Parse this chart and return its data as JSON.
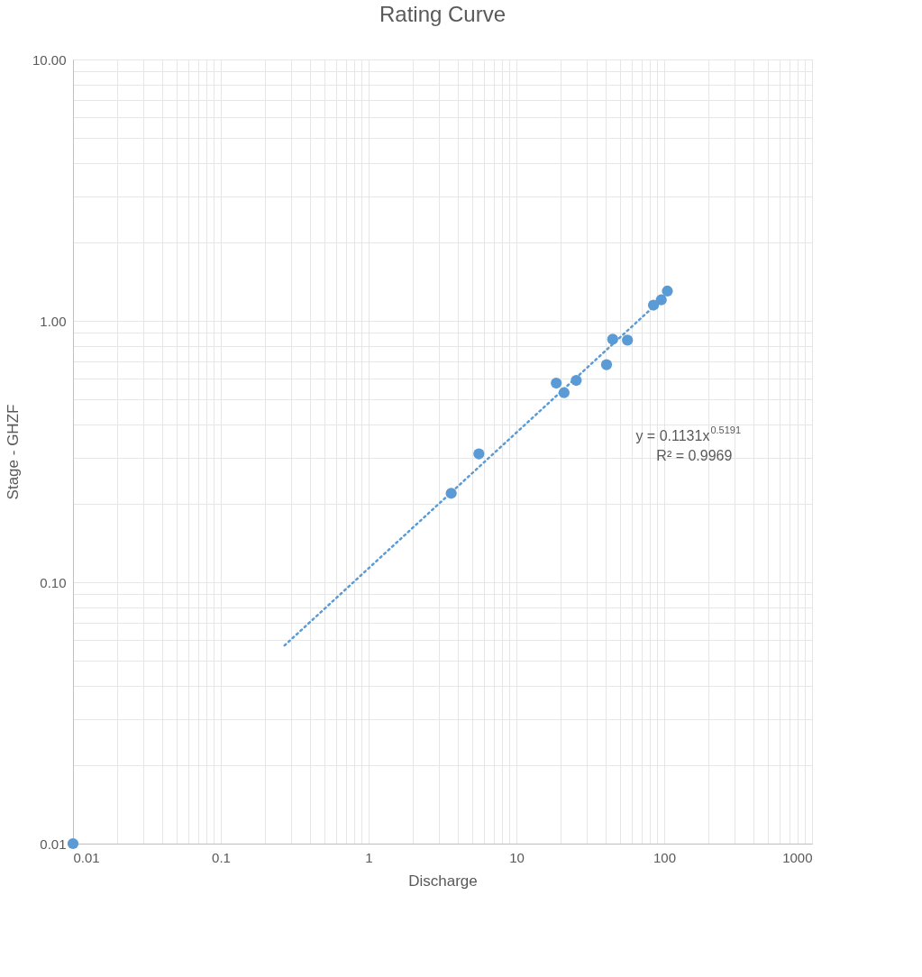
{
  "chart_data": {
    "type": "scatter",
    "title": "Rating Curve",
    "xlabel": "Discharge",
    "ylabel": "Stage - GHZF",
    "log": "xy",
    "grid": true,
    "marker": "circle",
    "xlim": [
      0.01,
      1000
    ],
    "ylim": [
      0.01,
      10
    ],
    "xticks": [
      0.01,
      {
        "value": 0.02,
        "label": null
      },
      {
        "value": 0.03,
        "label": null
      },
      {
        "value": 0.04,
        "label": null
      },
      {
        "value": 0.05,
        "label": null
      },
      {
        "value": 0.06,
        "label": null
      },
      {
        "value": 0.07,
        "label": null
      },
      {
        "value": 0.08,
        "label": null
      },
      {
        "value": 0.09,
        "label": null
      },
      0.1,
      {
        "value": 0.2,
        "label": null
      },
      {
        "value": 0.3,
        "label": null
      },
      {
        "value": 0.4,
        "label": null
      },
      {
        "value": 0.5,
        "label": null
      },
      {
        "value": 0.6,
        "label": null
      },
      {
        "value": 0.7,
        "label": null
      },
      {
        "value": 0.8,
        "label": null
      },
      {
        "value": 0.9,
        "label": null
      },
      1,
      {
        "value": 2,
        "label": null
      },
      {
        "value": 3,
        "label": null
      },
      {
        "value": 4,
        "label": null
      },
      {
        "value": 5,
        "label": null
      },
      {
        "value": 6,
        "label": null
      },
      {
        "value": 7,
        "label": null
      },
      {
        "value": 8,
        "label": null
      },
      {
        "value": 9,
        "label": null
      },
      10,
      {
        "value": 20,
        "label": null
      },
      {
        "value": 30,
        "label": null
      },
      {
        "value": 40,
        "label": null
      },
      {
        "value": 50,
        "label": null
      },
      {
        "value": 60,
        "label": null
      },
      {
        "value": 70,
        "label": null
      },
      {
        "value": 80,
        "label": null
      },
      {
        "value": 90,
        "label": null
      },
      100,
      {
        "value": 200,
        "label": null
      },
      {
        "value": 300,
        "label": null
      },
      {
        "value": 400,
        "label": null
      },
      {
        "value": 500,
        "label": null
      },
      {
        "value": 600,
        "label": null
      },
      {
        "value": 700,
        "label": null
      },
      {
        "value": 800,
        "label": null
      },
      {
        "value": 900,
        "label": null
      },
      1000
    ],
    "yticks": [
      {
        "value": 0.01,
        "label": "0.01"
      },
      {
        "value": 0.02,
        "label": null
      },
      {
        "value": 0.03,
        "label": null
      },
      {
        "value": 0.04,
        "label": null
      },
      {
        "value": 0.05,
        "label": null
      },
      {
        "value": 0.06,
        "label": null
      },
      {
        "value": 0.07,
        "label": null
      },
      {
        "value": 0.08,
        "label": null
      },
      {
        "value": 0.09,
        "label": null
      },
      {
        "value": 0.1,
        "label": "0.10"
      },
      {
        "value": 0.2,
        "label": null
      },
      {
        "value": 0.3,
        "label": null
      },
      {
        "value": 0.4,
        "label": null
      },
      {
        "value": 0.5,
        "label": null
      },
      {
        "value": 0.6,
        "label": null
      },
      {
        "value": 0.7,
        "label": null
      },
      {
        "value": 0.8,
        "label": null
      },
      {
        "value": 0.9,
        "label": null
      },
      {
        "value": 1,
        "label": "1.00"
      },
      {
        "value": 2,
        "label": null
      },
      {
        "value": 3,
        "label": null
      },
      {
        "value": 4,
        "label": null
      },
      {
        "value": 5,
        "label": null
      },
      {
        "value": 6,
        "label": null
      },
      {
        "value": 7,
        "label": null
      },
      {
        "value": 8,
        "label": null
      },
      {
        "value": 9,
        "label": null
      },
      {
        "value": 10,
        "label": "10.00"
      }
    ],
    "series": [
      {
        "type": "scatter",
        "color": "#5b9bd5",
        "x": [
          0.01,
          3.62,
          5.57,
          18.6,
          21.0,
          25.4,
          40.7,
          44.8,
          56.4,
          84.6,
          95.5,
          105
        ],
        "values": [
          0.01,
          0.219,
          0.31,
          0.578,
          0.531,
          0.592,
          0.68,
          0.851,
          0.844,
          1.149,
          1.203,
          1.3
        ]
      },
      {
        "type": "line",
        "color": "#5b9bd5",
        "line_style": "dotted",
        "marker": "none",
        "x": [
          0.27,
          105
        ],
        "values": [
          0.0573,
          1.267
        ]
      }
    ],
    "annotations": [
      "y = 0.1131x$^{0.5191}$",
      "R² = 0.9969"
    ]
  }
}
